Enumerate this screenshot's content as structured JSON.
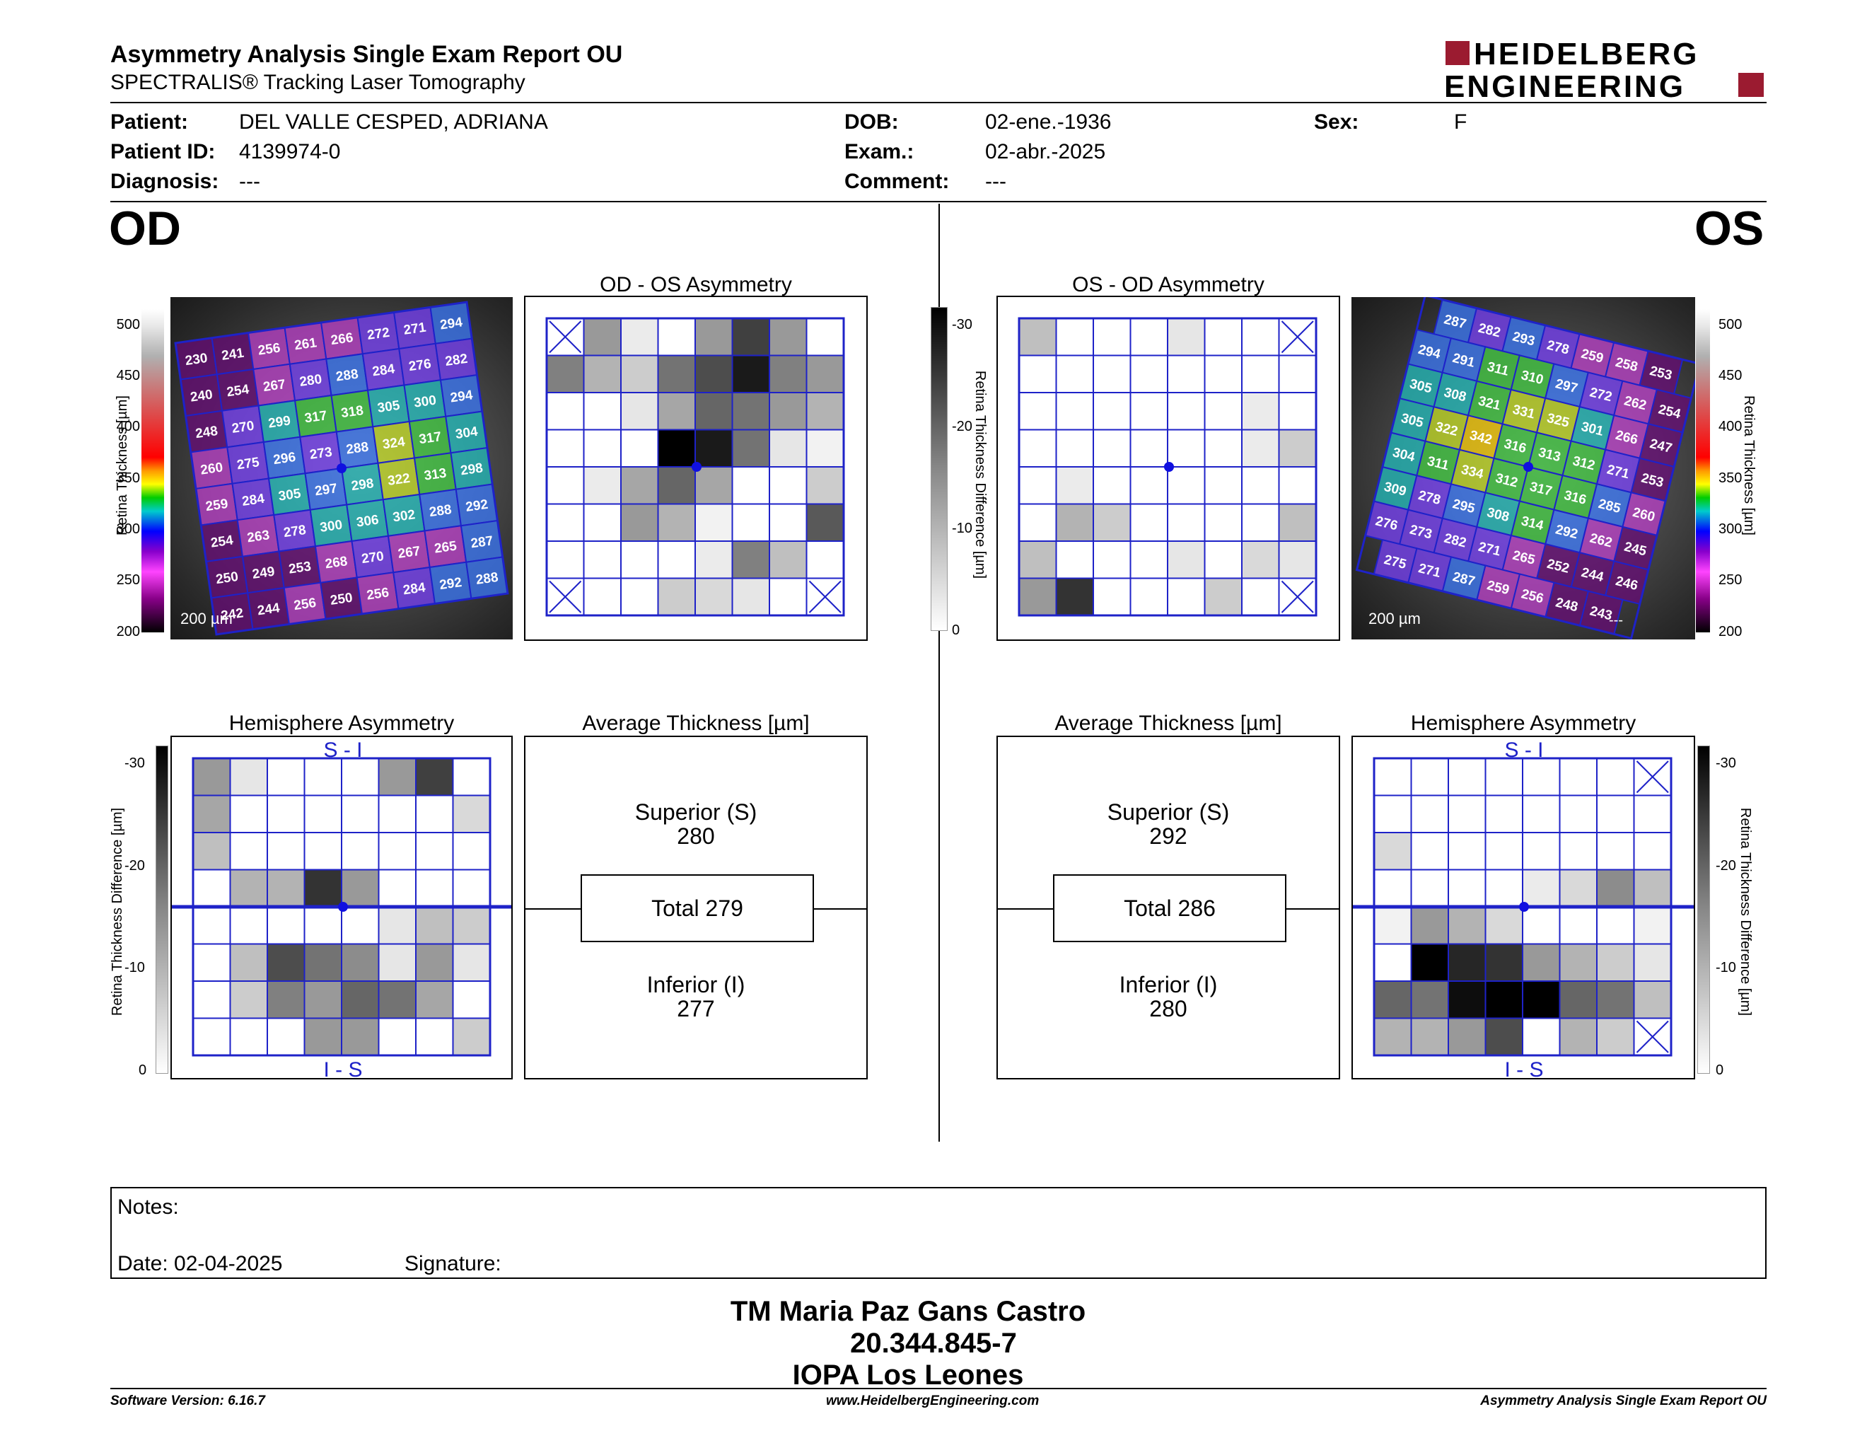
{
  "header": {
    "title": "Asymmetry Analysis Single Exam Report OU",
    "subtitle": "SPECTRALIS® Tracking Laser Tomography",
    "logo": {
      "line1": "HEIDELBERG",
      "line2": "ENGINEERING",
      "accent": "#9b1b30"
    }
  },
  "patient": {
    "patient_label": "Patient:",
    "patient": "DEL VALLE CESPED, ADRIANA",
    "id_label": "Patient ID:",
    "id": "4139974-0",
    "diagnosis_label": "Diagnosis:",
    "diagnosis": "---",
    "dob_label": "DOB:",
    "dob": "02-ene.-1936",
    "exam_label": "Exam.:",
    "exam": "02-abr.-2025",
    "comment_label": "Comment:",
    "comment": "---",
    "sex_label": "Sex:",
    "sex": "F"
  },
  "od": {
    "eye": "OD",
    "asym_title": "OD - OS Asymmetry",
    "hemi_title": "Hemisphere Asymmetry",
    "avg_title": "Average Thickness [µm]",
    "superior_label": "Superior (S)",
    "superior": "280",
    "total": "Total 279",
    "inferior_label": "Inferior (I)",
    "inferior": "277",
    "scale_bar": "200 µm",
    "thickness_grid": [
      [
        230,
        241,
        256,
        261,
        266,
        272,
        271,
        294
      ],
      [
        240,
        254,
        267,
        280,
        288,
        284,
        276,
        282
      ],
      [
        248,
        270,
        299,
        317,
        318,
        305,
        300,
        294
      ],
      [
        260,
        275,
        296,
        273,
        288,
        324,
        317,
        304
      ],
      [
        259,
        284,
        305,
        297,
        298,
        322,
        313,
        298
      ],
      [
        254,
        263,
        278,
        300,
        306,
        302,
        288,
        292
      ],
      [
        250,
        249,
        253,
        268,
        270,
        267,
        265,
        287
      ],
      [
        242,
        244,
        256,
        250,
        256,
        284,
        292,
        288
      ]
    ],
    "asym_grid": [
      [
        -1,
        40,
        8,
        0,
        40,
        75,
        40,
        0
      ],
      [
        50,
        30,
        20,
        55,
        70,
        90,
        50,
        40
      ],
      [
        0,
        0,
        10,
        35,
        60,
        55,
        40,
        30
      ],
      [
        0,
        0,
        0,
        100,
        90,
        55,
        10,
        5
      ],
      [
        0,
        8,
        35,
        60,
        35,
        0,
        0,
        20
      ],
      [
        0,
        0,
        40,
        30,
        5,
        0,
        0,
        65
      ],
      [
        0,
        0,
        0,
        0,
        8,
        50,
        25,
        0
      ],
      [
        -1,
        0,
        0,
        20,
        15,
        10,
        0,
        -1
      ]
    ],
    "hemi_grid": [
      [
        40,
        10,
        0,
        0,
        0,
        40,
        75,
        0
      ],
      [
        35,
        0,
        0,
        0,
        0,
        0,
        0,
        15
      ],
      [
        25,
        0,
        0,
        0,
        0,
        0,
        0,
        0
      ],
      [
        0,
        30,
        30,
        80,
        40,
        0,
        0,
        0
      ],
      [
        0,
        0,
        0,
        0,
        0,
        10,
        25,
        20
      ],
      [
        0,
        25,
        70,
        55,
        45,
        10,
        40,
        10
      ],
      [
        0,
        20,
        50,
        40,
        60,
        55,
        35,
        0
      ],
      [
        0,
        0,
        0,
        40,
        40,
        0,
        0,
        20
      ]
    ]
  },
  "os": {
    "eye": "OS",
    "asym_title": "OS - OD Asymmetry",
    "hemi_title": "Hemisphere Asymmetry",
    "avg_title": "Average Thickness [µm]",
    "superior_label": "Superior (S)",
    "superior": "292",
    "total": "Total 286",
    "inferior_label": "Inferior (I)",
    "inferior": "280",
    "scale_bar": "200 µm",
    "dash": "---",
    "thickness_grid": [
      [
        287,
        282,
        293,
        278,
        259,
        258,
        253
      ],
      [
        294,
        291,
        311,
        310,
        297,
        272,
        262,
        254
      ],
      [
        305,
        308,
        321,
        331,
        325,
        301,
        266,
        247
      ],
      [
        305,
        322,
        342,
        316,
        313,
        312,
        271,
        253
      ],
      [
        304,
        311,
        334,
        312,
        317,
        316,
        285,
        260
      ],
      [
        309,
        278,
        295,
        308,
        314,
        292,
        262,
        245
      ],
      [
        276,
        273,
        282,
        271,
        265,
        252,
        244,
        246
      ],
      [
        275,
        271,
        287,
        259,
        256,
        248,
        243
      ]
    ],
    "asym_grid": [
      [
        25,
        0,
        0,
        0,
        10,
        0,
        0,
        -1
      ],
      [
        0,
        0,
        0,
        0,
        0,
        0,
        0,
        0
      ],
      [
        0,
        0,
        0,
        0,
        0,
        0,
        8,
        0
      ],
      [
        0,
        0,
        0,
        0,
        0,
        0,
        8,
        20
      ],
      [
        0,
        8,
        0,
        0,
        0,
        0,
        0,
        0
      ],
      [
        0,
        30,
        20,
        0,
        0,
        0,
        0,
        25
      ],
      [
        25,
        0,
        0,
        0,
        10,
        0,
        15,
        10
      ],
      [
        40,
        80,
        0,
        0,
        0,
        20,
        0,
        -1
      ]
    ],
    "hemi_grid": [
      [
        0,
        0,
        0,
        0,
        0,
        0,
        0,
        -1
      ],
      [
        0,
        0,
        0,
        0,
        0,
        0,
        0,
        0
      ],
      [
        15,
        0,
        0,
        0,
        0,
        0,
        0,
        0
      ],
      [
        0,
        0,
        0,
        0,
        8,
        15,
        45,
        25
      ],
      [
        5,
        40,
        30,
        15,
        0,
        0,
        0,
        5
      ],
      [
        0,
        100,
        85,
        80,
        40,
        30,
        20,
        10
      ],
      [
        60,
        55,
        95,
        100,
        100,
        60,
        55,
        25
      ],
      [
        30,
        30,
        40,
        70,
        0,
        30,
        20,
        -1
      ]
    ]
  },
  "scales": {
    "thickness_label": "Retina Thickness [µm]",
    "thickness_ticks": [
      "500",
      "450",
      "400",
      "350",
      "300",
      "250",
      "200"
    ],
    "diff_label": "Retina Thickness Difference [µm]",
    "diff_ticks": [
      "-30",
      "-20",
      "-10",
      "0"
    ],
    "s_i": "S - I",
    "i_s": "I - S"
  },
  "notes": {
    "notes_label": "Notes:",
    "date": "Date: 02-04-2025",
    "signature_label": "Signature:"
  },
  "signature": {
    "name": "TM Maria Paz Gans Castro",
    "rut": "20.344.845-7",
    "org": "IOPA Los Leones"
  },
  "footer": {
    "version": "Software Version: 6.16.7",
    "website": "www.HeidelbergEngineering.com",
    "report": "Asymmetry Analysis Single Exam Report OU"
  },
  "colors": {
    "grid_blue": "#1e22c8",
    "dot_blue": "#1010e0"
  }
}
